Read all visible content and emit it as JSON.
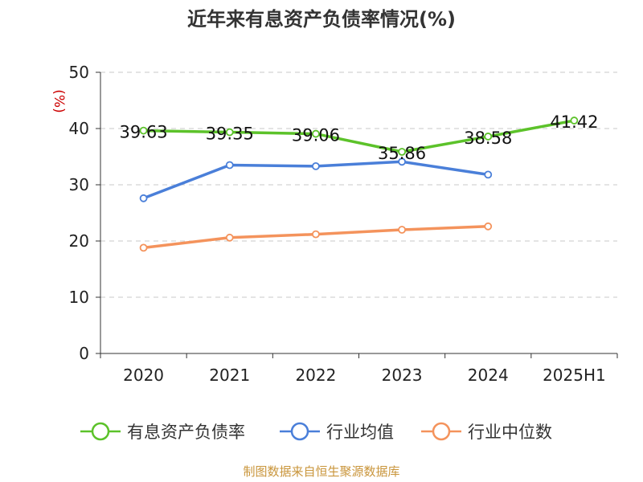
{
  "chart_data": {
    "type": "line",
    "title": "近年来有息资产负债率情况(%)",
    "ylabel": "(%)",
    "categories": [
      "2020",
      "2021",
      "2022",
      "2023",
      "2024",
      "2025H1"
    ],
    "ylim": [
      0,
      50
    ],
    "yticks": [
      "0",
      "10",
      "20",
      "30",
      "40",
      "50"
    ],
    "grid": true,
    "legend_position": "bottom",
    "series": [
      {
        "name": "有息资产负债率",
        "color": "#5cc22a",
        "values": [
          39.63,
          39.35,
          39.06,
          35.86,
          38.58,
          41.42
        ],
        "labels": [
          "39.63",
          "39.35",
          "39.06",
          "35.86",
          "38.58",
          "41.42"
        ]
      },
      {
        "name": "行业均值",
        "color": "#4a7fd9",
        "values": [
          27.6,
          33.5,
          33.3,
          34.1,
          31.8,
          null
        ]
      },
      {
        "name": "行业中位数",
        "color": "#f4935c",
        "values": [
          18.8,
          20.6,
          21.2,
          22.0,
          22.6,
          null
        ]
      }
    ]
  },
  "source": "制图数据来自恒生聚源数据库"
}
